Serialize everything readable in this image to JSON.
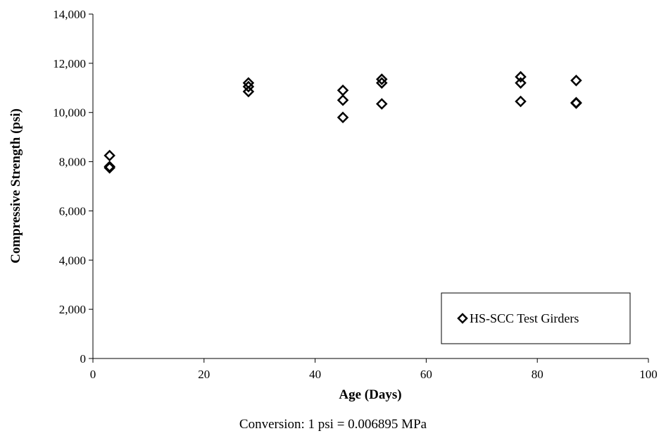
{
  "chart_data": {
    "type": "scatter",
    "title": "",
    "xlabel": "Age (Days)",
    "ylabel": "Compressive Strength (psi)",
    "xlim": [
      0,
      100
    ],
    "ylim": [
      0,
      14000
    ],
    "x_ticks": [
      0,
      20,
      40,
      60,
      80,
      100
    ],
    "x_tick_labels": [
      "0",
      "20",
      "40",
      "60",
      "80",
      "100"
    ],
    "y_ticks": [
      0,
      2000,
      4000,
      6000,
      8000,
      10000,
      12000,
      14000
    ],
    "y_tick_labels": [
      "0",
      "2,000",
      "4,000",
      "6,000",
      "8,000",
      "10,000",
      "12,000",
      "14,000"
    ],
    "grid": false,
    "legend_position": "bottom-right",
    "marker": "diamond-open",
    "series": [
      {
        "name": "HS-SCC Test Girders",
        "points": [
          {
            "x": 3,
            "y": 8250
          },
          {
            "x": 3,
            "y": 7800
          },
          {
            "x": 3,
            "y": 7750
          },
          {
            "x": 28,
            "y": 11200
          },
          {
            "x": 28,
            "y": 11050
          },
          {
            "x": 28,
            "y": 10850
          },
          {
            "x": 45,
            "y": 10900
          },
          {
            "x": 45,
            "y": 10500
          },
          {
            "x": 45,
            "y": 9800
          },
          {
            "x": 52,
            "y": 11350
          },
          {
            "x": 52,
            "y": 11200
          },
          {
            "x": 52,
            "y": 10350
          },
          {
            "x": 77,
            "y": 11450
          },
          {
            "x": 77,
            "y": 11200
          },
          {
            "x": 77,
            "y": 10450
          },
          {
            "x": 87,
            "y": 11300
          },
          {
            "x": 87,
            "y": 10400
          },
          {
            "x": 87,
            "y": 10380
          }
        ]
      }
    ]
  },
  "footer": {
    "conversion_note": "Conversion: 1 psi = 0.006895 MPa"
  }
}
